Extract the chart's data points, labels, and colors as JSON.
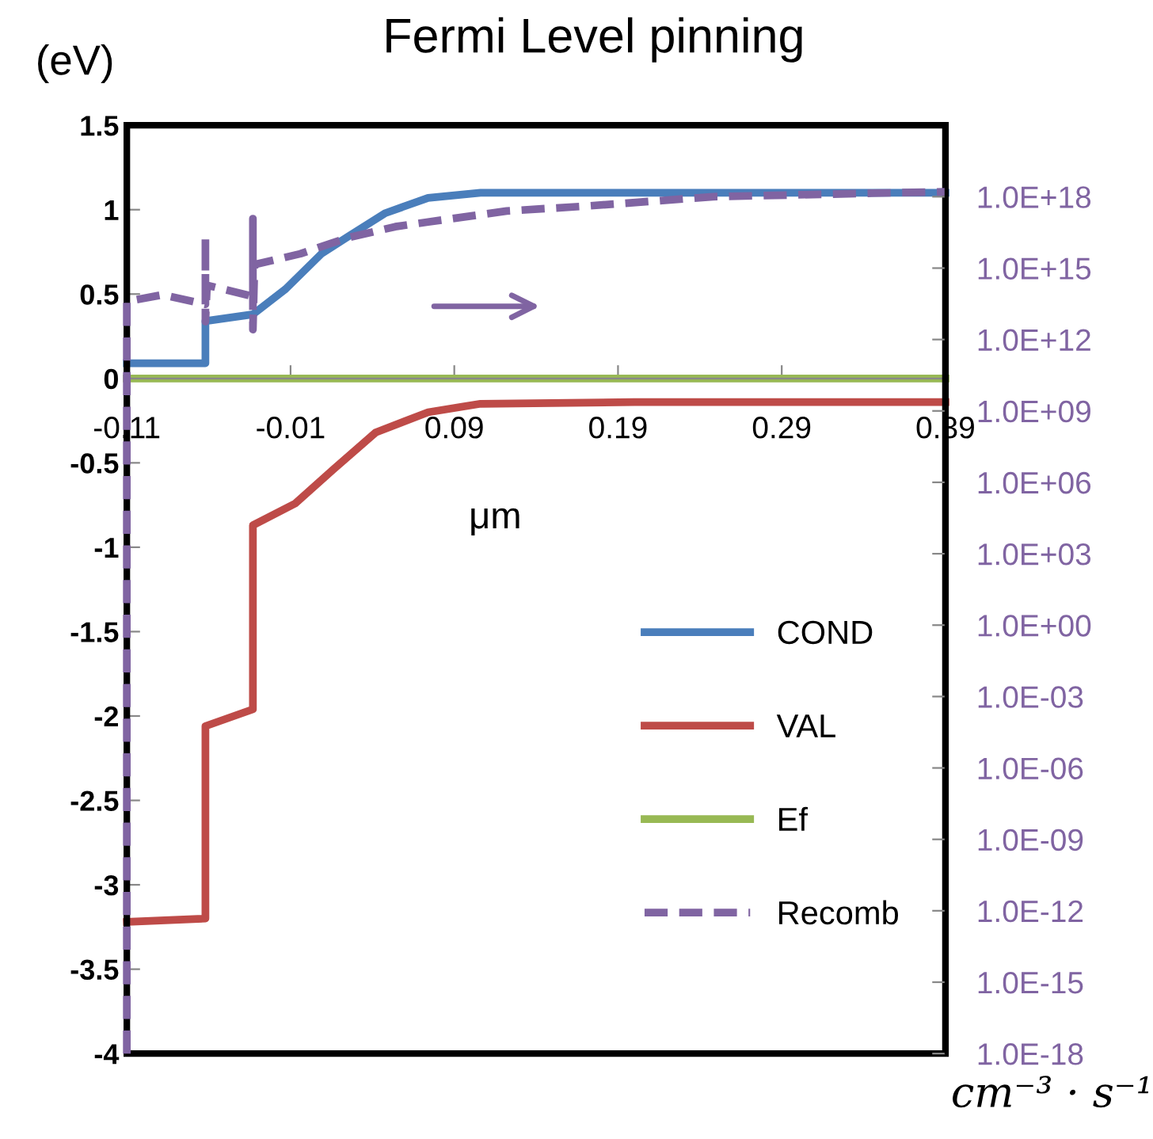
{
  "chart_data": {
    "type": "line",
    "title": "Fermi Level pinning",
    "xlabel": "μm",
    "ylabel": "(eV)",
    "y2label": "cm⁻³ · s⁻¹",
    "xlim": [
      -0.11,
      0.39
    ],
    "xticks": [
      -0.11,
      -0.01,
      0.09,
      0.19,
      0.29,
      0.39
    ],
    "ylim": [
      -4,
      1.5
    ],
    "yticks": [
      -4,
      -3.5,
      -3,
      -2.5,
      -2,
      -1.5,
      -1,
      -0.5,
      0,
      0.5,
      1,
      1.5
    ],
    "y2lim": [
      1e-18,
      1e+21
    ],
    "y2ticks": [
      {
        "value": 1e-18,
        "label": "1.0E-18"
      },
      {
        "value": 1e-15,
        "label": "1.0E-15"
      },
      {
        "value": 1e-12,
        "label": "1.0E-12"
      },
      {
        "value": 1e-09,
        "label": "1.0E-09"
      },
      {
        "value": 1e-06,
        "label": "1.0E-06"
      },
      {
        "value": 0.001,
        "label": "1.0E-03"
      },
      {
        "value": 1,
        "label": "1.0E+00"
      },
      {
        "value": 1000,
        "label": "1.0E+03"
      },
      {
        "value": 1000000.0,
        "label": "1.0E+06"
      },
      {
        "value": 1000000000.0,
        "label": "1.0E+09"
      },
      {
        "value": 1000000000000.0,
        "label": "1.0E+12"
      },
      {
        "value": 1000000000000000.0,
        "label": "1.0E+15"
      },
      {
        "value": 1e+18,
        "label": "1.0E+18"
      }
    ],
    "log": "y2",
    "grid": false,
    "legend": "bottom right",
    "marker": "none",
    "series": [
      {
        "name": "COND",
        "color": "#4a7ebb",
        "line_style": "solid",
        "x": [
          -0.11,
          -0.062,
          -0.062,
          -0.033,
          -0.013,
          0.009,
          0.025,
          0.048,
          0.074,
          0.106,
          0.2,
          0.39
        ],
        "values": [
          0.09,
          0.09,
          0.34,
          0.38,
          0.53,
          0.74,
          0.84,
          0.98,
          1.07,
          1.1,
          1.1,
          1.1
        ]
      },
      {
        "name": "VAL",
        "color": "#be4b48",
        "line_style": "solid",
        "x": [
          -0.11,
          -0.062,
          -0.062,
          -0.033,
          -0.033,
          -0.007,
          0.016,
          0.042,
          0.074,
          0.106,
          0.2,
          0.39
        ],
        "values": [
          -3.22,
          -3.2,
          -2.06,
          -1.96,
          -0.87,
          -0.74,
          -0.54,
          -0.32,
          -0.2,
          -0.15,
          -0.14,
          -0.14
        ]
      },
      {
        "name": "Ef",
        "color": "#98b954",
        "line_style": "solid",
        "x": [
          -0.11,
          0.39
        ],
        "values": [
          0,
          0
        ]
      },
      {
        "name": "Recomb",
        "color": "#8064a2",
        "line_style": "dashed",
        "axis": "y2",
        "x": [
          -0.11,
          -0.11,
          -0.088,
          -0.062,
          -0.062,
          -0.062,
          -0.061,
          -0.033,
          -0.033,
          -0.033,
          -0.032,
          -0.004,
          0.025,
          0.054,
          0.074,
          0.122,
          0.17,
          0.248,
          0.345,
          0.39
        ],
        "values": [
          1e-18,
          40000000000000.0,
          76000000000000.0,
          30000000000000.0,
          1.9e+16,
          5600000000000.0,
          190000000000000.0,
          65000000000000.0,
          1.2e+17,
          2600000000000.0,
          1400000000000000.0,
          4000000000000000.0,
          1.9e+16,
          5.5e+16,
          8.7e+16,
          2.5e+17,
          4e+17,
          1e+18,
          1.4e+18,
          1.6e+18
        ]
      }
    ]
  }
}
